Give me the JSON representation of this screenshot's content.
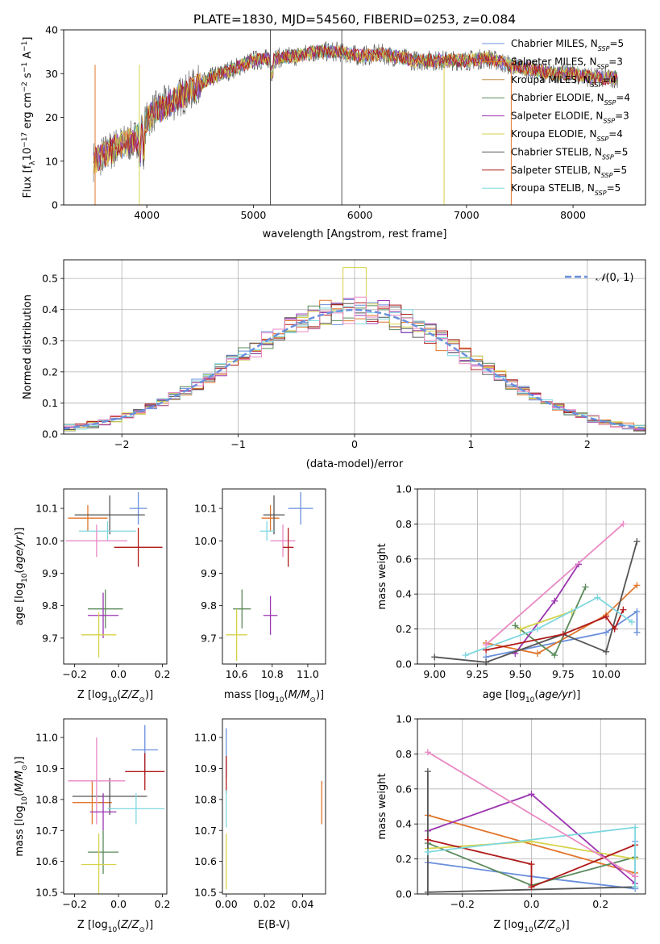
{
  "figure_title": "PLATE=1830, MJD=54560, FIBERID=0253, z=0.084",
  "colors": [
    "#6a8fdc",
    "#e0762b",
    "#c9914a",
    "#5b8a5b",
    "#9b35b0",
    "#d6d24b",
    "#555555",
    "#b01a1a",
    "#7fd8e0",
    "#e98ac4"
  ],
  "models": [
    {
      "name": "Chabrier MILES",
      "nssp": "5"
    },
    {
      "name": "Salpeter MILES",
      "nssp": "3"
    },
    {
      "name": "Kroupa MILES",
      "nssp": "4"
    },
    {
      "name": "Chabrier ELODIE",
      "nssp": "4"
    },
    {
      "name": "Salpeter ELODIE",
      "nssp": "3"
    },
    {
      "name": "Kroupa ELODIE",
      "nssp": "4"
    },
    {
      "name": "Chabrier STELIB",
      "nssp": "5"
    },
    {
      "name": "Salpeter STELIB",
      "nssp": "5"
    },
    {
      "name": "Kroupa STELIB",
      "nssp": "5"
    }
  ],
  "axes": {
    "spec_x": "wavelength [Angstrom, rest frame]",
    "spec_y": "Flux [f",
    "dist_x": "(data-model)/error",
    "dist_y": "Normed distribution",
    "dist_legend": "N(0,1)",
    "age_y": "age  [log",
    "mass_y": "mass [log",
    "z_x": "Z [log",
    "mass_x": "mass [log",
    "ebv_x": "E(B-V)",
    "mw_y": "mass weight",
    "age_x": "age  [log"
  },
  "chart_data": [
    {
      "type": "line",
      "title": "PLATE=1830, MJD=54560, FIBERID=0253, z=0.084",
      "xlabel": "wavelength [Angstrom, rest frame]",
      "ylabel": "Flux [fλ10^-17 erg cm^-2 s^-1 A^-1]",
      "xlim": [
        3220,
        8680
      ],
      "ylim": [
        0,
        40
      ],
      "xticks": [
        4000,
        5000,
        6000,
        7000,
        8000
      ],
      "yticks": [
        0,
        10,
        20,
        30,
        40
      ],
      "continuum": [
        [
          3500,
          10
        ],
        [
          3700,
          13
        ],
        [
          3900,
          15
        ],
        [
          4050,
          21
        ],
        [
          4200,
          23
        ],
        [
          4400,
          26
        ],
        [
          4600,
          29
        ],
        [
          4800,
          31
        ],
        [
          5000,
          33
        ],
        [
          5200,
          33.5
        ],
        [
          5400,
          34
        ],
        [
          5600,
          35
        ],
        [
          5800,
          35
        ],
        [
          6000,
          34
        ],
        [
          6200,
          34.5
        ],
        [
          6500,
          33
        ],
        [
          6800,
          33
        ],
        [
          7000,
          33
        ],
        [
          7200,
          33.5
        ],
        [
          7400,
          32
        ],
        [
          7600,
          31
        ],
        [
          7800,
          30
        ],
        [
          8000,
          30
        ],
        [
          8200,
          29
        ],
        [
          8400,
          29
        ]
      ],
      "series": [
        "Chabrier MILES, N_SSP=5",
        "Salpeter MILES, N_SSP=3",
        "Kroupa MILES, N_SSP=4",
        "Chabrier ELODIE, N_SSP=4",
        "Salpeter ELODIE, N_SSP=3",
        "Kroupa ELODIE, N_SSP=4",
        "Chabrier STELIB, N_SSP=5",
        "Salpeter STELIB, N_SSP=5",
        "Kroupa STELIB, N_SSP=5"
      ]
    },
    {
      "type": "line",
      "xlabel": "(data-model)/error",
      "ylabel": "Normed distribution",
      "xlim": [
        -2.5,
        2.5
      ],
      "ylim": [
        0,
        0.56
      ],
      "xticks": [
        -2,
        -1,
        0,
        1,
        2
      ],
      "yticks": [
        0.0,
        0.1,
        0.2,
        0.3,
        0.4,
        0.5
      ],
      "bin_width": 0.1,
      "reference": "N(0,1)"
    },
    {
      "type": "scatter",
      "xlabel": "Z [log10(Z/Z⊙)]",
      "ylabel": "age [log10(age/yr)]",
      "xlim": [
        -0.25,
        0.22
      ],
      "ylim": [
        9.62,
        10.16
      ],
      "xticks": [
        -0.2,
        0.0,
        0.2
      ],
      "yticks": [
        9.7,
        9.8,
        9.9,
        10.0,
        10.1
      ],
      "points": [
        {
          "x": 0.09,
          "y": 10.1,
          "ex": 0.04,
          "ey": 0.05,
          "c": 0
        },
        {
          "x": -0.14,
          "y": 10.07,
          "ex": 0.09,
          "ey": 0.04,
          "c": 1
        },
        {
          "x": -0.04,
          "y": 10.08,
          "ex": 0.16,
          "ey": 0.06,
          "c": 6
        },
        {
          "x": -0.05,
          "y": 10.03,
          "ex": 0.13,
          "ey": 0.03,
          "c": 8
        },
        {
          "x": -0.1,
          "y": 10.0,
          "ex": 0.14,
          "ey": 0.05,
          "c": 9
        },
        {
          "x": 0.09,
          "y": 9.98,
          "ex": 0.11,
          "ey": 0.06,
          "c": 7
        },
        {
          "x": -0.06,
          "y": 9.79,
          "ex": 0.08,
          "ey": 0.06,
          "c": 3
        },
        {
          "x": -0.07,
          "y": 9.77,
          "ex": 0.07,
          "ey": 0.07,
          "c": 4
        },
        {
          "x": -0.09,
          "y": 9.71,
          "ex": 0.08,
          "ey": 0.07,
          "c": 5
        }
      ]
    },
    {
      "type": "scatter",
      "xlabel": "mass [log10(M/M⊙)]",
      "ylabel": "",
      "xlim": [
        10.52,
        11.1
      ],
      "ylim": [
        9.62,
        10.16
      ],
      "xticks": [
        10.6,
        10.8,
        11.0
      ],
      "yticks": [
        9.7,
        9.8,
        9.9,
        10.0,
        10.1
      ],
      "points": [
        {
          "x": 10.96,
          "y": 10.1,
          "ex": 0.07,
          "ey": 0.05,
          "c": 0
        },
        {
          "x": 10.79,
          "y": 10.07,
          "ex": 0.05,
          "ey": 0.04,
          "c": 1
        },
        {
          "x": 10.81,
          "y": 10.08,
          "ex": 0.06,
          "ey": 0.06,
          "c": 6
        },
        {
          "x": 10.77,
          "y": 10.03,
          "ex": 0.04,
          "ey": 0.03,
          "c": 8
        },
        {
          "x": 10.86,
          "y": 10.0,
          "ex": 0.07,
          "ey": 0.05,
          "c": 9
        },
        {
          "x": 10.89,
          "y": 9.98,
          "ex": 0.03,
          "ey": 0.06,
          "c": 7
        },
        {
          "x": 10.63,
          "y": 9.79,
          "ex": 0.05,
          "ey": 0.06,
          "c": 3
        },
        {
          "x": 10.79,
          "y": 9.77,
          "ex": 0.04,
          "ey": 0.06,
          "c": 4
        },
        {
          "x": 10.6,
          "y": 9.71,
          "ex": 0.06,
          "ey": 0.08,
          "c": 5
        }
      ]
    },
    {
      "type": "line",
      "xlabel": "age [log10(age/yr)]",
      "ylabel": "mass weight",
      "xlim": [
        8.9,
        10.23
      ],
      "ylim": [
        0,
        1
      ],
      "xticks": [
        9.0,
        9.25,
        9.5,
        9.75,
        10.0
      ],
      "yticks": [
        0.0,
        0.2,
        0.4,
        0.6,
        0.8,
        1.0
      ],
      "series": [
        {
          "c": 0,
          "pts": [
            [
              9.3,
              0.04
            ],
            [
              10.0,
              0.18
            ],
            [
              10.18,
              0.3
            ],
            [
              10.18,
              0.18
            ]
          ]
        },
        {
          "c": 1,
          "pts": [
            [
              9.3,
              0.12
            ],
            [
              9.6,
              0.06
            ],
            [
              10.0,
              0.28
            ],
            [
              10.18,
              0.45
            ]
          ]
        },
        {
          "c": 3,
          "pts": [
            [
              9.47,
              0.22
            ],
            [
              9.7,
              0.05
            ],
            [
              9.88,
              0.44
            ]
          ]
        },
        {
          "c": 4,
          "pts": [
            [
              9.47,
              0.06
            ],
            [
              9.7,
              0.36
            ],
            [
              9.84,
              0.57
            ]
          ]
        },
        {
          "c": 5,
          "pts": [
            [
              9.5,
              0.2
            ],
            [
              9.8,
              0.3
            ]
          ]
        },
        {
          "c": 6,
          "pts": [
            [
              9.0,
              0.04
            ],
            [
              9.3,
              0.01
            ],
            [
              9.75,
              0.17
            ],
            [
              10.0,
              0.07
            ],
            [
              10.18,
              0.7
            ]
          ]
        },
        {
          "c": 7,
          "pts": [
            [
              9.3,
              0.08
            ],
            [
              9.75,
              0.17
            ],
            [
              10.0,
              0.27
            ],
            [
              10.05,
              0.2
            ],
            [
              10.1,
              0.31
            ]
          ]
        },
        {
          "c": 8,
          "pts": [
            [
              9.18,
              0.05
            ],
            [
              9.6,
              0.2
            ],
            [
              9.95,
              0.38
            ],
            [
              10.15,
              0.24
            ]
          ]
        },
        {
          "c": 9,
          "pts": [
            [
              9.3,
              0.11
            ],
            [
              10.1,
              0.8
            ]
          ]
        }
      ]
    },
    {
      "type": "scatter",
      "xlabel": "Z [log10(Z/Z⊙)]",
      "ylabel": "mass [log10(M/M⊙)]",
      "xlim": [
        -0.25,
        0.22
      ],
      "ylim": [
        10.495,
        11.06
      ],
      "xticks": [
        -0.2,
        0.0,
        0.2
      ],
      "yticks": [
        10.5,
        10.6,
        10.7,
        10.8,
        10.9,
        11.0
      ],
      "points": [
        {
          "x": 0.12,
          "y": 10.96,
          "ex": 0.06,
          "ey": 0.08,
          "c": 0
        },
        {
          "x": -0.12,
          "y": 10.79,
          "ex": 0.09,
          "ey": 0.07,
          "c": 1
        },
        {
          "x": -0.04,
          "y": 10.81,
          "ex": 0.17,
          "ey": 0.06,
          "c": 6
        },
        {
          "x": 0.08,
          "y": 10.77,
          "ex": 0.13,
          "ey": 0.05,
          "c": 8
        },
        {
          "x": -0.1,
          "y": 10.86,
          "ex": 0.13,
          "ey": 0.14,
          "c": 9
        },
        {
          "x": 0.12,
          "y": 10.89,
          "ex": 0.09,
          "ey": 0.06,
          "c": 7
        },
        {
          "x": -0.07,
          "y": 10.63,
          "ex": 0.07,
          "ey": 0.07,
          "c": 3
        },
        {
          "x": -0.07,
          "y": 10.76,
          "ex": 0.06,
          "ey": 0.06,
          "c": 4
        },
        {
          "x": -0.09,
          "y": 10.59,
          "ex": 0.08,
          "ey": 0.1,
          "c": 5
        }
      ]
    },
    {
      "type": "scatter",
      "xlabel": "E(B-V)",
      "ylabel": "",
      "xlim": [
        -0.002,
        0.052
      ],
      "ylim": [
        10.495,
        11.06
      ],
      "xticks": [
        0.0,
        0.02,
        0.04
      ],
      "yticks": [
        10.5,
        10.6,
        10.7,
        10.8,
        10.9,
        11.0
      ],
      "points": [
        {
          "x": 0.0,
          "y": 10.95,
          "ex": 0,
          "ey": 0.08,
          "c": 0
        },
        {
          "x": 0.05,
          "y": 10.79,
          "ex": 0,
          "ey": 0.07,
          "c": 1
        },
        {
          "x": 0.0,
          "y": 10.88,
          "ex": 0,
          "ey": 0.06,
          "c": 7
        },
        {
          "x": 0.0,
          "y": 10.77,
          "ex": 0,
          "ey": 0.06,
          "c": 8
        },
        {
          "x": 0.0,
          "y": 10.6,
          "ex": 0,
          "ey": 0.09,
          "c": 5
        }
      ]
    },
    {
      "type": "line",
      "xlabel": "Z [log10(Z/Z⊙)]",
      "ylabel": "mass weight",
      "xlim": [
        -0.33,
        0.33
      ],
      "ylim": [
        0,
        1
      ],
      "xticks": [
        -0.2,
        0.0,
        0.2
      ],
      "yticks": [
        0.0,
        0.2,
        0.4,
        0.6,
        0.8,
        1.0
      ],
      "series": [
        {
          "c": 0,
          "pts": [
            [
              -0.3,
              0.18
            ],
            [
              0.0,
              0.1
            ],
            [
              0.3,
              0.03
            ],
            [
              0.3,
              0.3
            ]
          ]
        },
        {
          "c": 1,
          "pts": [
            [
              -0.3,
              0.45
            ],
            [
              0.3,
              0.12
            ]
          ]
        },
        {
          "c": 3,
          "pts": [
            [
              -0.3,
              0.29
            ],
            [
              0.0,
              0.05
            ],
            [
              0.3,
              0.21
            ]
          ]
        },
        {
          "c": 4,
          "pts": [
            [
              -0.3,
              0.36
            ],
            [
              0.0,
              0.57
            ],
            [
              0.3,
              0.06
            ]
          ]
        },
        {
          "c": 5,
          "pts": [
            [
              -0.3,
              0.26
            ],
            [
              0.0,
              0.3
            ],
            [
              0.3,
              0.2
            ]
          ]
        },
        {
          "c": 6,
          "pts": [
            [
              -0.3,
              0.7
            ],
            [
              -0.3,
              0.01
            ],
            [
              0.3,
              0.04
            ]
          ]
        },
        {
          "c": 7,
          "pts": [
            [
              -0.3,
              0.31
            ],
            [
              0.0,
              0.17
            ],
            [
              0.0,
              0.04
            ],
            [
              0.3,
              0.28
            ]
          ]
        },
        {
          "c": 8,
          "pts": [
            [
              -0.3,
              0.24
            ],
            [
              0.3,
              0.38
            ],
            [
              0.3,
              0.04
            ]
          ]
        },
        {
          "c": 9,
          "pts": [
            [
              -0.3,
              0.81
            ],
            [
              0.3,
              0.1
            ]
          ]
        }
      ]
    }
  ]
}
